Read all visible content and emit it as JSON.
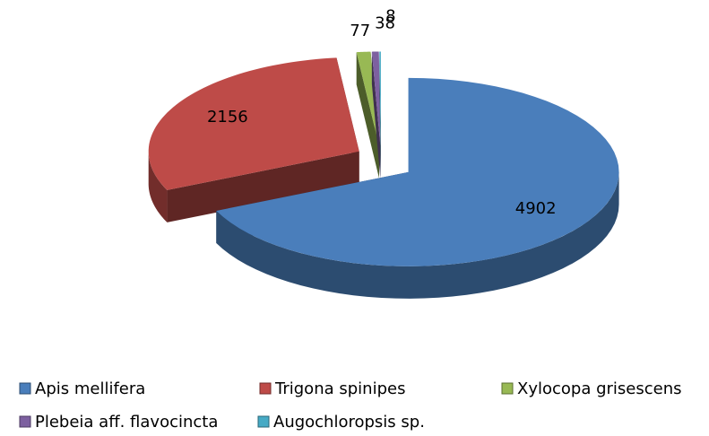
{
  "chart_data": {
    "type": "pie",
    "categories": [
      "Apis mellifera",
      "Trigona spinipes",
      "Xylocopa grisescens",
      "Plebeia aff. flavocincta",
      "Augochloropsis sp."
    ],
    "values": [
      4902,
      2156,
      77,
      38,
      8
    ],
    "colors": [
      "#4a7ebb",
      "#be4b48",
      "#98b954",
      "#7d60a0",
      "#46aac5"
    ],
    "legend": "bottom"
  }
}
